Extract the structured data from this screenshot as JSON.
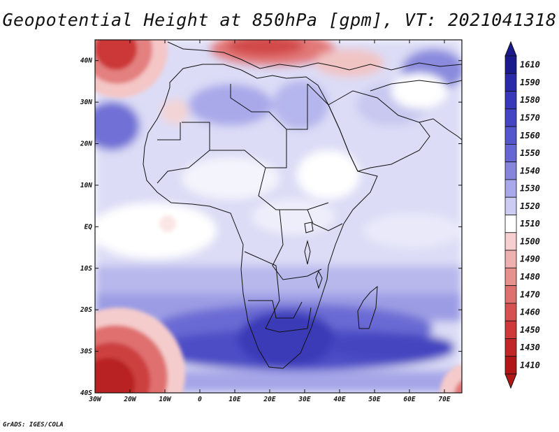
{
  "title": "Geopotential Height at 850hPa [gpm], VT: 2021041318",
  "credit": "GrADS: IGES/COLA",
  "map": {
    "lon_labels": [
      "30W",
      "20W",
      "10W",
      "0",
      "10E",
      "20E",
      "30E",
      "40E",
      "50E",
      "60E",
      "70E"
    ],
    "lat_labels": [
      "40N",
      "30N",
      "20N",
      "10N",
      "EQ",
      "10S",
      "20S",
      "30S",
      "40S"
    ],
    "lon_range": [
      -30,
      75
    ],
    "lat_range": [
      -40,
      45
    ]
  },
  "colorbar": {
    "levels": [
      "1610",
      "1590",
      "1580",
      "1570",
      "1560",
      "1550",
      "1540",
      "1530",
      "1520",
      "1510",
      "1500",
      "1490",
      "1480",
      "1470",
      "1460",
      "1450",
      "1430",
      "1410"
    ],
    "colors": [
      "#1a1a8c",
      "#2a2aa8",
      "#3838b8",
      "#4545c4",
      "#5555cc",
      "#6666d4",
      "#8585de",
      "#a8a8ea",
      "#ccccf2",
      "#ffffff",
      "#f6d0d0",
      "#eeb0b0",
      "#e69090",
      "#de7070",
      "#d65252",
      "#ce3a3a",
      "#c02828",
      "#b01818"
    ],
    "top_color": "#1a1a8c",
    "bottom_color": "#b01818"
  },
  "colors": {
    "south_ridge": "#3d3dbb",
    "mid_band": "#8b8be0",
    "north_ridge": "#c8c8ef",
    "low_pressure": "#d64848"
  }
}
